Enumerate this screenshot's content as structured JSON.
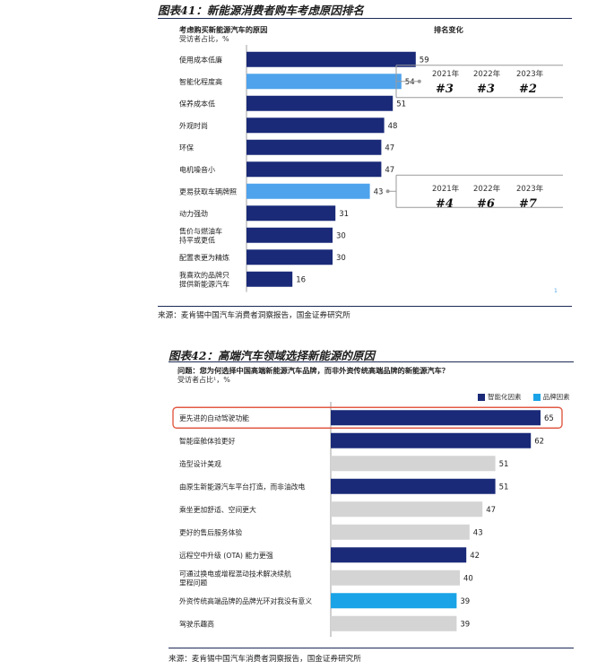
{
  "figure41": {
    "title": "图表41：新能源消费者购车考虑原因排名",
    "subtitle": "考虑购买新能源汽车的原因",
    "unit": "受访者占比，%",
    "rank_header": "排名变化",
    "rank_groups": [
      {
        "years": [
          "2021年",
          "2022年",
          "2023年"
        ],
        "ranks": [
          "#3",
          "#3",
          "#2"
        ]
      },
      {
        "years": [
          "2021年",
          "2022年",
          "2023年"
        ],
        "ranks": [
          "#4",
          "#6",
          "#7"
        ]
      }
    ],
    "source": "来源：麦肯锡中国汽车消费者洞察报告，国金证券研究所",
    "footnote": "1",
    "colors": {
      "dark": "#1a2a78",
      "light": "#4fa3ec",
      "connector": "#9a9a9a"
    }
  },
  "figure42": {
    "title": "图表42：高端汽车领域选择新能源的原因",
    "question": "问题：您为何选择中国高端新能源汽车品牌，而非外资传统高端品牌的新能源汽车？",
    "unit": "受访者占比¹，%",
    "legend": [
      {
        "label": "智能化因素",
        "color": "#1a2a78"
      },
      {
        "label": "品牌因素",
        "color": "#1aa3e6"
      }
    ],
    "source": "来源：麦肯锡中国汽车消费者洞察报告，国金证券研究所",
    "colors": {
      "smart": "#1a2a78",
      "brand": "#1aa3e6",
      "other": "#d4d4d4",
      "highlight": "#e05a44"
    }
  },
  "chart_data": [
    {
      "type": "bar",
      "orientation": "horizontal",
      "title": "考虑购买新能源汽车的原因",
      "ylabel": "受访者占比，%",
      "categories": [
        [
          "使用成本低廉"
        ],
        [
          "智能化程度高"
        ],
        [
          "保养成本低"
        ],
        [
          "外观时尚"
        ],
        [
          "环保"
        ],
        [
          "电机噪音小"
        ],
        [
          "更易获取车辆牌照"
        ],
        [
          "动力强劲"
        ],
        [
          "售价与燃油车",
          "持平或更低"
        ],
        [
          "配置表更为精炼"
        ],
        [
          "我喜欢的品牌只",
          "提供新能源汽车"
        ]
      ],
      "values": [
        59,
        54,
        51,
        48,
        47,
        47,
        43,
        31,
        30,
        30,
        16
      ],
      "highlighted_indices": [
        1,
        6
      ],
      "xlim": [
        0,
        62
      ]
    },
    {
      "type": "bar",
      "orientation": "horizontal",
      "title": "问题：您为何选择中国高端新能源汽车品牌，而非外资传统高端品牌的新能源汽车？",
      "ylabel": "受访者占比¹，%",
      "categories": [
        [
          "更先进的自动驾驶功能"
        ],
        [
          "智能座舱体验更好"
        ],
        [
          "造型设计美观"
        ],
        [
          "由原生新能源汽车平台打造，而非油改电"
        ],
        [
          "乘坐更加舒适、空间更大"
        ],
        [
          "更好的售后服务体验"
        ],
        [
          "远程空中升级 (OTA) 能力更强"
        ],
        [
          "可通过换电或增程混动技术解决续航",
          "里程问题"
        ],
        [
          "外资传统高端品牌的品牌光环对我没有意义"
        ],
        [
          "驾驶乐趣高"
        ]
      ],
      "values": [
        65,
        62,
        51,
        51,
        47,
        43,
        42,
        40,
        39,
        39
      ],
      "groups": [
        "smart",
        "smart",
        "other",
        "smart",
        "other",
        "other",
        "smart",
        "other",
        "brand",
        "other"
      ],
      "legend": [
        "智能化因素",
        "品牌因素"
      ],
      "highlighted_category_index": 0,
      "xlim": [
        0,
        67
      ]
    }
  ]
}
